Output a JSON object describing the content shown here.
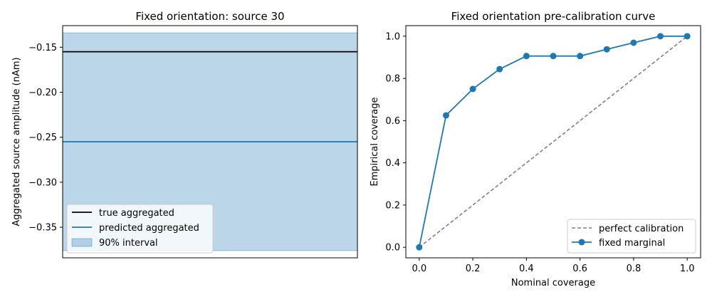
{
  "chart_data": [
    {
      "type": "line",
      "title": "Fixed orientation: source 30",
      "xlabel": "",
      "ylabel": "Aggregated source amplitude (nAm)",
      "ylim": [
        -0.384,
        -0.126
      ],
      "yticks": [
        -0.35,
        -0.3,
        -0.25,
        -0.2,
        -0.15
      ],
      "ytick_labels": [
        "−0.35",
        "−0.30",
        "−0.25",
        "−0.20",
        "−0.15"
      ],
      "xticks": [],
      "grid": false,
      "legend_position": "lower-left",
      "series": [
        {
          "name": "true aggregated",
          "type": "hline",
          "value": -0.155,
          "color": "#000000"
        },
        {
          "name": "predicted aggregated",
          "type": "hline",
          "value": -0.255,
          "color": "#1f77b4"
        },
        {
          "name": "90% interval",
          "type": "band",
          "range": [
            -0.376,
            -0.134
          ],
          "color": "#1f77b4"
        }
      ]
    },
    {
      "type": "line",
      "title": "Fixed orientation pre-calibration curve",
      "xlabel": "Nominal coverage",
      "ylabel": "Empirical coverage",
      "xlim": [
        -0.05,
        1.05
      ],
      "ylim": [
        -0.05,
        1.05
      ],
      "xticks": [
        0.0,
        0.2,
        0.4,
        0.6,
        0.8,
        1.0
      ],
      "xtick_labels": [
        "0.0",
        "0.2",
        "0.4",
        "0.6",
        "0.8",
        "1.0"
      ],
      "yticks": [
        0.0,
        0.2,
        0.4,
        0.6,
        0.8,
        1.0
      ],
      "ytick_labels": [
        "0.0",
        "0.2",
        "0.4",
        "0.6",
        "0.8",
        "1.0"
      ],
      "grid": false,
      "legend_position": "lower-right",
      "series": [
        {
          "name": "perfect calibration",
          "style": "dashed",
          "color": "#808080",
          "x": [
            0.0,
            1.0
          ],
          "y": [
            0.0,
            1.0
          ]
        },
        {
          "name": "fixed marginal",
          "style": "line-marker",
          "color": "#1f77b4",
          "x": [
            0.0,
            0.1,
            0.2,
            0.3,
            0.4,
            0.5,
            0.6,
            0.7,
            0.8,
            0.9,
            1.0
          ],
          "y": [
            0.0,
            0.625,
            0.75,
            0.844,
            0.906,
            0.906,
            0.906,
            0.938,
            0.969,
            1.0,
            1.0
          ]
        }
      ]
    }
  ]
}
